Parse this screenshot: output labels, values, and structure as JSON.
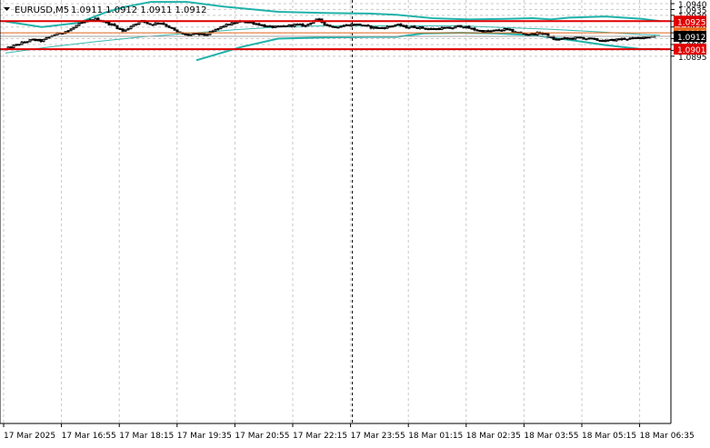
{
  "header": {
    "symbol_label": "EURUSD,M5",
    "ohlc_text": "1.0911 1.0912 1.0911 1.0912"
  },
  "colors": {
    "background": "#ffffff",
    "grid": "#c8c8c8",
    "candle": "#000000",
    "bollinger": "#20b2aa",
    "level_strong": "#e00000",
    "level_weak": "#e8691c",
    "label_text": "#ffffff",
    "current_price_bg": "#000000"
  },
  "chart_data": {
    "type": "candlestick",
    "symbol": "EURUSD",
    "timeframe": "M5",
    "ylim": [
      1.08915,
      1.094
    ],
    "y_ticks": [
      "1.0940",
      "1.0935",
      "1.0930",
      "1.0925",
      "1.0920",
      "1.0915",
      "1.0910",
      "1.0905",
      "1.0900",
      "1.0895"
    ],
    "x_ticks": [
      "17 Mar 2025",
      "17 Mar 16:55",
      "17 Mar 18:15",
      "17 Mar 19:35",
      "17 Mar 20:55",
      "17 Mar 22:15",
      "17 Mar 23:55",
      "18 Mar 01:15",
      "18 Mar 02:35",
      "18 Mar 03:55",
      "18 Mar 05:15",
      "18 Mar 06:35"
    ],
    "grid": true,
    "current_price": "1.0912",
    "levels": [
      {
        "price": 1.0925,
        "label": "1.0925",
        "style": "strong"
      },
      {
        "price": 1.0915,
        "label": "1.0915",
        "style": "weak"
      },
      {
        "price": 1.0901,
        "label": "1.0901",
        "style": "strong"
      }
    ],
    "close_path": [
      [
        0,
        1.0901
      ],
      [
        10,
        1.0904
      ],
      [
        20,
        1.0907
      ],
      [
        30,
        1.0909
      ],
      [
        40,
        1.0908
      ],
      [
        52,
        1.0913
      ],
      [
        60,
        1.0915
      ],
      [
        70,
        1.0917
      ],
      [
        80,
        1.0922
      ],
      [
        90,
        1.0925
      ],
      [
        100,
        1.0927
      ],
      [
        110,
        1.0924
      ],
      [
        120,
        1.0921
      ],
      [
        130,
        1.0916
      ],
      [
        140,
        1.0922
      ],
      [
        150,
        1.0925
      ],
      [
        160,
        1.0922
      ],
      [
        170,
        1.0924
      ],
      [
        180,
        1.092
      ],
      [
        190,
        1.0915
      ],
      [
        200,
        1.0913
      ],
      [
        210,
        1.0914
      ],
      [
        220,
        1.0913
      ],
      [
        230,
        1.0917
      ],
      [
        240,
        1.0921
      ],
      [
        250,
        1.0923
      ],
      [
        260,
        1.0925
      ],
      [
        270,
        1.0924
      ],
      [
        280,
        1.0922
      ],
      [
        290,
        1.092
      ],
      [
        300,
        1.092
      ],
      [
        310,
        1.0921
      ],
      [
        320,
        1.0922
      ],
      [
        330,
        1.0921
      ],
      [
        340,
        1.0926
      ],
      [
        345,
        1.0926
      ],
      [
        350,
        1.0923
      ],
      [
        360,
        1.092
      ],
      [
        370,
        1.0921
      ],
      [
        380,
        1.0922
      ],
      [
        390,
        1.0922
      ],
      [
        400,
        1.092
      ],
      [
        410,
        1.0919
      ],
      [
        420,
        1.092
      ],
      [
        430,
        1.0922
      ],
      [
        440,
        1.092
      ],
      [
        450,
        1.092
      ],
      [
        460,
        1.0919
      ],
      [
        470,
        1.0918
      ],
      [
        480,
        1.0919
      ],
      [
        490,
        1.0919
      ],
      [
        500,
        1.0921
      ],
      [
        510,
        1.0919
      ],
      [
        520,
        1.0917
      ],
      [
        530,
        1.0916
      ],
      [
        540,
        1.0917
      ],
      [
        550,
        1.0918
      ],
      [
        560,
        1.0916
      ],
      [
        570,
        1.0914
      ],
      [
        580,
        1.0914
      ],
      [
        590,
        1.0915
      ],
      [
        600,
        1.0911
      ],
      [
        605,
        1.0909
      ],
      [
        610,
        1.091
      ],
      [
        620,
        1.091
      ],
      [
        630,
        1.0911
      ],
      [
        640,
        1.091
      ],
      [
        650,
        1.0909
      ],
      [
        660,
        1.0908
      ],
      [
        670,
        1.0909
      ],
      [
        680,
        1.091
      ],
      [
        690,
        1.091
      ],
      [
        700,
        1.0911
      ],
      [
        710,
        1.0912
      ],
      [
        715,
        1.0912
      ]
    ],
    "bollinger_middle": [
      [
        0,
        1.08977
      ],
      [
        50,
        1.0903
      ],
      [
        100,
        1.09075
      ],
      [
        150,
        1.09115
      ],
      [
        200,
        1.09145
      ],
      [
        250,
        1.09175
      ],
      [
        300,
        1.092
      ],
      [
        350,
        1.0921
      ],
      [
        400,
        1.0921
      ],
      [
        450,
        1.0921
      ],
      [
        500,
        1.0921
      ],
      [
        550,
        1.09195
      ],
      [
        600,
        1.0918
      ],
      [
        650,
        1.0916
      ],
      [
        700,
        1.09135
      ],
      [
        720,
        1.0913
      ]
    ],
    "bollinger_upper": [
      [
        0,
        1.09247
      ],
      [
        40,
        1.092
      ],
      [
        80,
        1.09235
      ],
      [
        110,
        1.09325
      ],
      [
        130,
        1.0937
      ],
      [
        160,
        1.09415
      ],
      [
        200,
        1.09415
      ],
      [
        240,
        1.09375
      ],
      [
        300,
        1.0933
      ],
      [
        350,
        1.0932
      ],
      [
        400,
        1.09315
      ],
      [
        430,
        1.09305
      ],
      [
        470,
        1.09275
      ],
      [
        510,
        1.09265
      ],
      [
        550,
        1.0927
      ],
      [
        580,
        1.09275
      ],
      [
        600,
        1.09265
      ],
      [
        620,
        1.0928
      ],
      [
        660,
        1.0929
      ],
      [
        700,
        1.0927
      ],
      [
        720,
        1.0925
      ]
    ],
    "bollinger_lower": [
      [
        210,
        1.08915
      ],
      [
        260,
        1.0903
      ],
      [
        300,
        1.091
      ],
      [
        350,
        1.0911
      ],
      [
        400,
        1.09115
      ],
      [
        430,
        1.09115
      ],
      [
        460,
        1.09145
      ],
      [
        500,
        1.0915
      ],
      [
        540,
        1.09145
      ],
      [
        580,
        1.0913
      ],
      [
        620,
        1.0909
      ],
      [
        660,
        1.09045
      ],
      [
        700,
        1.0901
      ],
      [
        720,
        1.09012
      ]
    ],
    "vertical_marker_label": "17 Mar 23:55"
  }
}
